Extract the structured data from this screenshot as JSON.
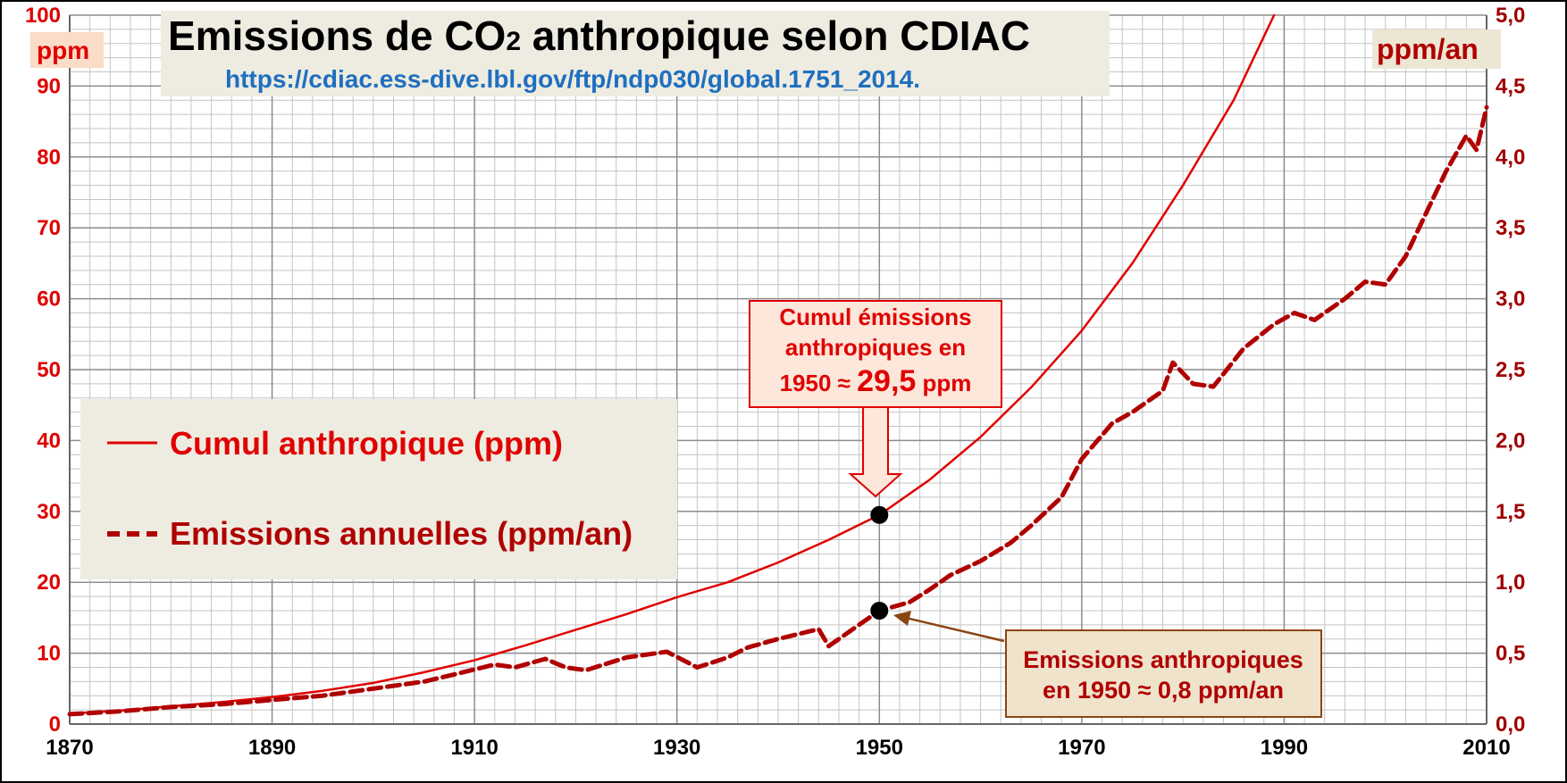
{
  "chart_data": {
    "type": "line",
    "title": "Emissions de CO",
    "title_subscript": "2",
    "title_rest": " anthropique selon CDIAC",
    "source_url": "https://cdiac.ess-dive.lbl.gov/ftp/ndp030/global.1751_2014.",
    "y_left_unit": "ppm",
    "y_right_unit": "ppm/an",
    "xlim": [
      1870,
      2010
    ],
    "ylim_left": [
      0,
      100
    ],
    "ylim_right": [
      0,
      5
    ],
    "x_ticks": [
      "1870",
      "1890",
      "1910",
      "1930",
      "1950",
      "1970",
      "1990",
      "2010"
    ],
    "y_left_ticks": [
      "0",
      "10",
      "20",
      "30",
      "40",
      "50",
      "60",
      "70",
      "80",
      "90",
      "100"
    ],
    "y_right_ticks": [
      "0,0",
      "0,5",
      "1,0",
      "1,5",
      "2,0",
      "2,5",
      "3,0",
      "3,5",
      "4,0",
      "4,5",
      "5,0"
    ],
    "grid": true,
    "legend_position": "middle-left",
    "series": [
      {
        "name": "Cumul anthropique (ppm)",
        "axis": "left",
        "style": "solid",
        "color": "#e00000",
        "x": [
          1870,
          1875,
          1880,
          1885,
          1890,
          1895,
          1900,
          1905,
          1910,
          1915,
          1920,
          1925,
          1930,
          1935,
          1940,
          1945,
          1950,
          1955,
          1960,
          1965,
          1970,
          1975,
          1980,
          1985,
          1989
        ],
        "y": [
          1.5,
          1.9,
          2.5,
          3.1,
          3.8,
          4.7,
          5.8,
          7.3,
          9.0,
          11.1,
          13.3,
          15.5,
          17.9,
          20.0,
          22.8,
          26.0,
          29.5,
          34.5,
          40.5,
          47.5,
          55.5,
          65.0,
          76.0,
          88.0,
          100.0
        ]
      },
      {
        "name": "Emissions annuelles (ppm/an)",
        "axis": "right",
        "style": "dashed",
        "color": "#b00000",
        "x": [
          1870,
          1875,
          1880,
          1885,
          1890,
          1895,
          1900,
          1905,
          1908,
          1912,
          1914,
          1917,
          1919,
          1921,
          1925,
          1929,
          1932,
          1935,
          1937,
          1940,
          1944,
          1945,
          1948,
          1950,
          1953,
          1955,
          1957,
          1960,
          1963,
          1965,
          1968,
          1970,
          1973,
          1975,
          1978,
          1979,
          1981,
          1983,
          1986,
          1989,
          1991,
          1993,
          1996,
          1998,
          2000,
          2002,
          2004,
          2006,
          2008,
          2009,
          2010
        ],
        "y": [
          0.07,
          0.09,
          0.12,
          0.14,
          0.17,
          0.2,
          0.25,
          0.3,
          0.35,
          0.42,
          0.4,
          0.46,
          0.4,
          0.38,
          0.47,
          0.51,
          0.4,
          0.47,
          0.54,
          0.6,
          0.67,
          0.55,
          0.7,
          0.8,
          0.86,
          0.95,
          1.05,
          1.15,
          1.28,
          1.4,
          1.6,
          1.87,
          2.12,
          2.2,
          2.35,
          2.55,
          2.4,
          2.38,
          2.65,
          2.82,
          2.9,
          2.85,
          3.0,
          3.12,
          3.1,
          3.3,
          3.6,
          3.9,
          4.15,
          4.05,
          4.35
        ]
      }
    ],
    "points": [
      {
        "x": 1950,
        "y": 29.5,
        "axis": "left"
      },
      {
        "x": 1950,
        "y": 0.8,
        "axis": "right"
      }
    ],
    "annotations": {
      "cumul": {
        "line1": "Cumul émissions",
        "line2": "anthropiques en",
        "line3_prefix": "1950 ≈ ",
        "line3_value": "29,5",
        "line3_suffix": " ppm"
      },
      "emissions": {
        "line1": "Emissions anthropiques",
        "line2": "en 1950 ≈ 0,8 ppm/an"
      }
    },
    "colors": {
      "cumul": "#e00000",
      "emissions": "#b00000",
      "panel": "#eeece1",
      "url": "#1f6fc0"
    }
  }
}
